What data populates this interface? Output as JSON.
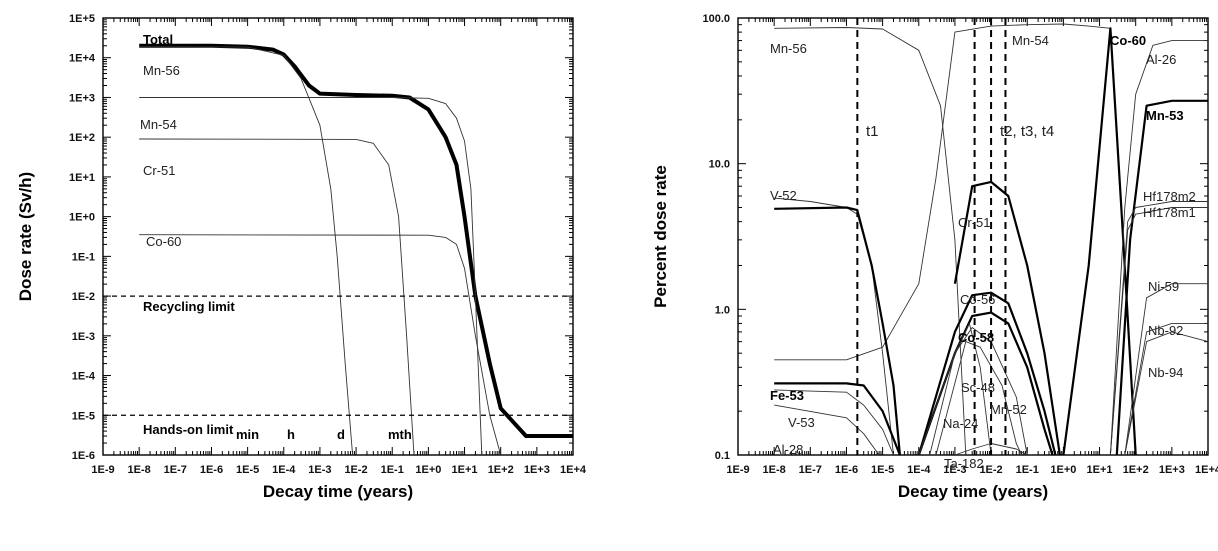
{
  "chart_data": [
    {
      "type": "line",
      "log_x": true,
      "log_y": true,
      "xlabel": "Decay time (years)",
      "ylabel": "Dose rate (Sv/h)",
      "xlim": [
        1e-09,
        10000.0
      ],
      "ylim": [
        1e-06,
        100000.0
      ],
      "x_ticks": [
        "1E-9",
        "1E-8",
        "1E-7",
        "1E-6",
        "1E-5",
        "1E-4",
        "1E-3",
        "1E-2",
        "1E-1",
        "1E+0",
        "1E+1",
        "1E+2",
        "1E+3",
        "1E+4"
      ],
      "y_ticks": [
        "1E-6",
        "1E-5",
        "1E-4",
        "1E-3",
        "1E-2",
        "1E-1",
        "1E+0",
        "1E+1",
        "1E+2",
        "1E+3",
        "1E+4",
        "1E+5"
      ],
      "grid": false,
      "series": [
        {
          "name": "Total",
          "bold": true,
          "points": [
            [
              1e-08,
              20000
            ],
            [
              1e-06,
              20000
            ],
            [
              1e-05,
              19000
            ],
            [
              5e-05,
              16000
            ],
            [
              0.0001,
              12000
            ],
            [
              0.0002,
              6000
            ],
            [
              0.0005,
              2000
            ],
            [
              0.001,
              1250
            ],
            [
              0.01,
              1150
            ],
            [
              0.1,
              1100
            ],
            [
              0.3,
              1000
            ],
            [
              1,
              500
            ],
            [
              3,
              100
            ],
            [
              6,
              20
            ],
            [
              10.0,
              1
            ],
            [
              20.0,
              0.01
            ],
            [
              50.0,
              0.0002
            ],
            [
              100.0,
              1.5e-05
            ],
            [
              500.0,
              3e-06
            ],
            [
              10000.0,
              3e-06
            ]
          ]
        },
        {
          "name": "Mn-56",
          "bold": false,
          "points": [
            [
              1e-08,
              19000
            ],
            [
              1e-05,
              18500
            ],
            [
              0.0001,
              11500
            ],
            [
              0.0003,
              3000
            ],
            [
              0.001,
              200
            ],
            [
              0.002,
              5
            ],
            [
              0.003,
              0.1
            ],
            [
              0.005,
              0.0002
            ],
            [
              0.008,
              1e-06
            ]
          ]
        },
        {
          "name": "Mn-54",
          "bold": false,
          "points": [
            [
              1e-08,
              1000
            ],
            [
              0.1,
              1000
            ],
            [
              1,
              950
            ],
            [
              3,
              700
            ],
            [
              6,
              300
            ],
            [
              10.0,
              80
            ],
            [
              15.0,
              5
            ],
            [
              20.0,
              0.01
            ],
            [
              30.0,
              1e-06
            ]
          ]
        },
        {
          "name": "Cr-51",
          "bold": false,
          "points": [
            [
              1e-08,
              90
            ],
            [
              0.01,
              88
            ],
            [
              0.03,
              70
            ],
            [
              0.08,
              20
            ],
            [
              0.15,
              1
            ],
            [
              0.25,
              0.001
            ],
            [
              0.4,
              1e-06
            ]
          ]
        },
        {
          "name": "Co-60",
          "bold": false,
          "points": [
            [
              1e-08,
              0.35
            ],
            [
              1,
              0.34
            ],
            [
              3,
              0.3
            ],
            [
              6,
              0.2
            ],
            [
              10.0,
              0.05
            ],
            [
              20.0,
              0.001
            ],
            [
              50.0,
              1e-05
            ],
            [
              100.0,
              1e-06
            ]
          ]
        }
      ],
      "reference_lines": [
        {
          "name": "Recycling limit",
          "y": 0.01
        },
        {
          "name": "Hands-on limit",
          "y": 1e-05
        }
      ],
      "annotations": [
        "Total",
        "Mn-56",
        "Mn-54",
        "Cr-51",
        "Co-60",
        "min",
        "h",
        "d",
        "mth"
      ]
    },
    {
      "type": "line",
      "log_x": true,
      "log_y": true,
      "xlabel": "Decay time (years)",
      "ylabel": "Percent dose rate",
      "xlim": [
        1e-09,
        10000.0
      ],
      "ylim": [
        0.1,
        100
      ],
      "x_ticks": [
        "1E-9",
        "1E-8",
        "1E-7",
        "1E-6",
        "1E-5",
        "1E-4",
        "1E-3",
        "1E-2",
        "1E-1",
        "1E+0",
        "1E+1",
        "1E+2",
        "1E+3",
        "1E+4"
      ],
      "y_ticks": [
        "0.1",
        "1.0",
        "10.0",
        "100.0"
      ],
      "grid": false,
      "vertical_lines": [
        2e-06,
        0.0035,
        0.01,
        0.025
      ],
      "markers": [
        "t1",
        "t2, t3, t4"
      ],
      "series": [
        {
          "name": "Mn-56",
          "bold": false,
          "points": [
            [
              1e-08,
              85
            ],
            [
              1e-06,
              86
            ],
            [
              1e-05,
              84
            ],
            [
              0.0001,
              60
            ],
            [
              0.0004,
              25
            ],
            [
              0.001,
              3
            ],
            [
              0.002,
              0.1
            ]
          ]
        },
        {
          "name": "Mn-54",
          "bold": false,
          "points": [
            [
              1e-08,
              0.45
            ],
            [
              1e-06,
              0.45
            ],
            [
              1e-05,
              0.55
            ],
            [
              0.0001,
              1.5
            ],
            [
              0.0003,
              8
            ],
            [
              0.001,
              80
            ],
            [
              0.01,
              88
            ],
            [
              0.1,
              90
            ],
            [
              1,
              91
            ],
            [
              5,
              88
            ],
            [
              20.0,
              85
            ]
          ]
        },
        {
          "name": "V-52",
          "bold": false,
          "points": [
            [
              1e-08,
              5.8
            ],
            [
              1e-07,
              5.5
            ],
            [
              1e-06,
              5
            ],
            [
              2e-06,
              4.5
            ],
            [
              5e-06,
              2
            ],
            [
              1e-05,
              0.5
            ],
            [
              2e-05,
              0.1
            ]
          ]
        },
        {
          "name": "Cr-51",
          "bold": true,
          "points": [
            [
              1e-08,
              4.9
            ],
            [
              1e-06,
              5
            ],
            [
              2e-06,
              4.8
            ],
            [
              5e-06,
              2
            ],
            [
              1e-05,
              0.8
            ],
            [
              2e-05,
              0.3
            ],
            [
              3e-05,
              0.1
            ]
          ]
        },
        {
          "name": "Cr-51 (peak)",
          "bold": true,
          "points": [
            [
              0.001,
              1.5
            ],
            [
              0.003,
              7
            ],
            [
              0.01,
              7.5
            ],
            [
              0.03,
              6
            ],
            [
              0.1,
              2
            ],
            [
              0.3,
              0.5
            ],
            [
              0.8,
              0.1
            ]
          ]
        },
        {
          "name": "Co-56",
          "bold": true,
          "points": [
            [
              0.0001,
              0.1
            ],
            [
              0.001,
              0.7
            ],
            [
              0.003,
              1.25
            ],
            [
              0.01,
              1.3
            ],
            [
              0.03,
              1.1
            ],
            [
              0.1,
              0.5
            ],
            [
              0.3,
              0.2
            ],
            [
              0.6,
              0.1
            ]
          ]
        },
        {
          "name": "Co-58",
          "bold": true,
          "points": [
            [
              0.0001,
              0.1
            ],
            [
              0.001,
              0.5
            ],
            [
              0.003,
              0.9
            ],
            [
              0.01,
              0.95
            ],
            [
              0.03,
              0.8
            ],
            [
              0.1,
              0.4
            ],
            [
              0.3,
              0.15
            ],
            [
              0.5,
              0.1
            ]
          ]
        },
        {
          "name": "Sc-48",
          "bold": false,
          "points": [
            [
              0.0002,
              0.1
            ],
            [
              0.001,
              0.5
            ],
            [
              0.003,
              0.75
            ],
            [
              0.01,
              0.6
            ],
            [
              0.05,
              0.25
            ],
            [
              0.1,
              0.1
            ]
          ]
        },
        {
          "name": "Mn-52",
          "bold": false,
          "points": [
            [
              0.0003,
              0.1
            ],
            [
              0.002,
              0.6
            ],
            [
              0.005,
              0.55
            ],
            [
              0.02,
              0.3
            ],
            [
              0.05,
              0.12
            ],
            [
              0.07,
              0.1
            ]
          ]
        },
        {
          "name": "Na-24",
          "bold": false,
          "points": [
            [
              0.0001,
              0.1
            ],
            [
              0.001,
              0.5
            ],
            [
              0.0025,
              0.8
            ],
            [
              0.005,
              0.4
            ],
            [
              0.01,
              0.1
            ]
          ]
        },
        {
          "name": "Ta-182",
          "bold": false,
          "points": [
            [
              0.001,
              0.1
            ],
            [
              0.003,
              0.11
            ],
            [
              0.01,
              0.12
            ],
            [
              0.05,
              0.11
            ],
            [
              0.1,
              0.1
            ]
          ]
        },
        {
          "name": "Fe-53",
          "bold": true,
          "points": [
            [
              1e-08,
              0.31
            ],
            [
              1e-06,
              0.31
            ],
            [
              3e-06,
              0.3
            ],
            [
              1e-05,
              0.2
            ],
            [
              3e-05,
              0.1
            ]
          ]
        },
        {
          "name": "V-53",
          "bold": false,
          "points": [
            [
              1e-08,
              0.28
            ],
            [
              1e-06,
              0.27
            ],
            [
              3e-06,
              0.22
            ],
            [
              1e-05,
              0.15
            ],
            [
              2e-05,
              0.1
            ]
          ]
        },
        {
          "name": "Al-28",
          "bold": false,
          "points": [
            [
              1e-08,
              0.22
            ],
            [
              1e-06,
              0.18
            ],
            [
              3e-06,
              0.14
            ],
            [
              8e-06,
              0.1
            ]
          ]
        },
        {
          "name": "Co-60",
          "bold": true,
          "points": [
            [
              1,
              0.1
            ],
            [
              5,
              2
            ],
            [
              20.0,
              85
            ],
            [
              40.0,
              5
            ],
            [
              100.0,
              0.1
            ]
          ]
        },
        {
          "name": "Al-26",
          "bold": false,
          "points": [
            [
              20.0,
              0.1
            ],
            [
              50.0,
              5
            ],
            [
              100.0,
              30
            ],
            [
              300.0,
              65
            ],
            [
              1000.0,
              70
            ],
            [
              10000.0,
              70
            ]
          ]
        },
        {
          "name": "Mn-53",
          "bold": true,
          "points": [
            [
              30.0,
              0.1
            ],
            [
              70.0,
              3
            ],
            [
              200.0,
              25
            ],
            [
              1000.0,
              27
            ],
            [
              10000.0,
              27
            ]
          ]
        },
        {
          "name": "Hf178m2",
          "bold": false,
          "points": [
            [
              20.0,
              0.1
            ],
            [
              60.0,
              4
            ],
            [
              100.0,
              5
            ],
            [
              1000.0,
              5.5
            ],
            [
              10000.0,
              5.5
            ]
          ]
        },
        {
          "name": "Hf178m1",
          "bold": false,
          "points": [
            [
              20.0,
              0.1
            ],
            [
              60.0,
              3.5
            ],
            [
              100.0,
              4.5
            ],
            [
              1000.0,
              5
            ],
            [
              10000.0,
              5
            ]
          ]
        },
        {
          "name": "Ni-59",
          "bold": false,
          "points": [
            [
              50.0,
              0.1
            ],
            [
              200.0,
              1.2
            ],
            [
              1000.0,
              1.5
            ],
            [
              10000.0,
              1.5
            ]
          ]
        },
        {
          "name": "Nb-92",
          "bold": false,
          "points": [
            [
              50.0,
              0.1
            ],
            [
              200.0,
              0.7
            ],
            [
              1000.0,
              0.8
            ],
            [
              10000.0,
              0.8
            ]
          ]
        },
        {
          "name": "Nb-94",
          "bold": false,
          "points": [
            [
              50.0,
              0.1
            ],
            [
              200.0,
              0.6
            ],
            [
              1000.0,
              0.7
            ],
            [
              10000.0,
              0.6
            ]
          ]
        }
      ],
      "annotations": [
        "Mn-56",
        "Mn-54",
        "Co-60",
        "Al-26",
        "Mn-53",
        "V-52",
        "Cr-51",
        "Hf178m2",
        "Hf178m1",
        "Co-56",
        "Co-58",
        "Ni-59",
        "Nb-92",
        "Sc-48",
        "Nb-94",
        "Fe-53",
        "Na-24",
        "Mn-52",
        "V-53",
        "Al-28",
        "Ta-182"
      ]
    }
  ]
}
